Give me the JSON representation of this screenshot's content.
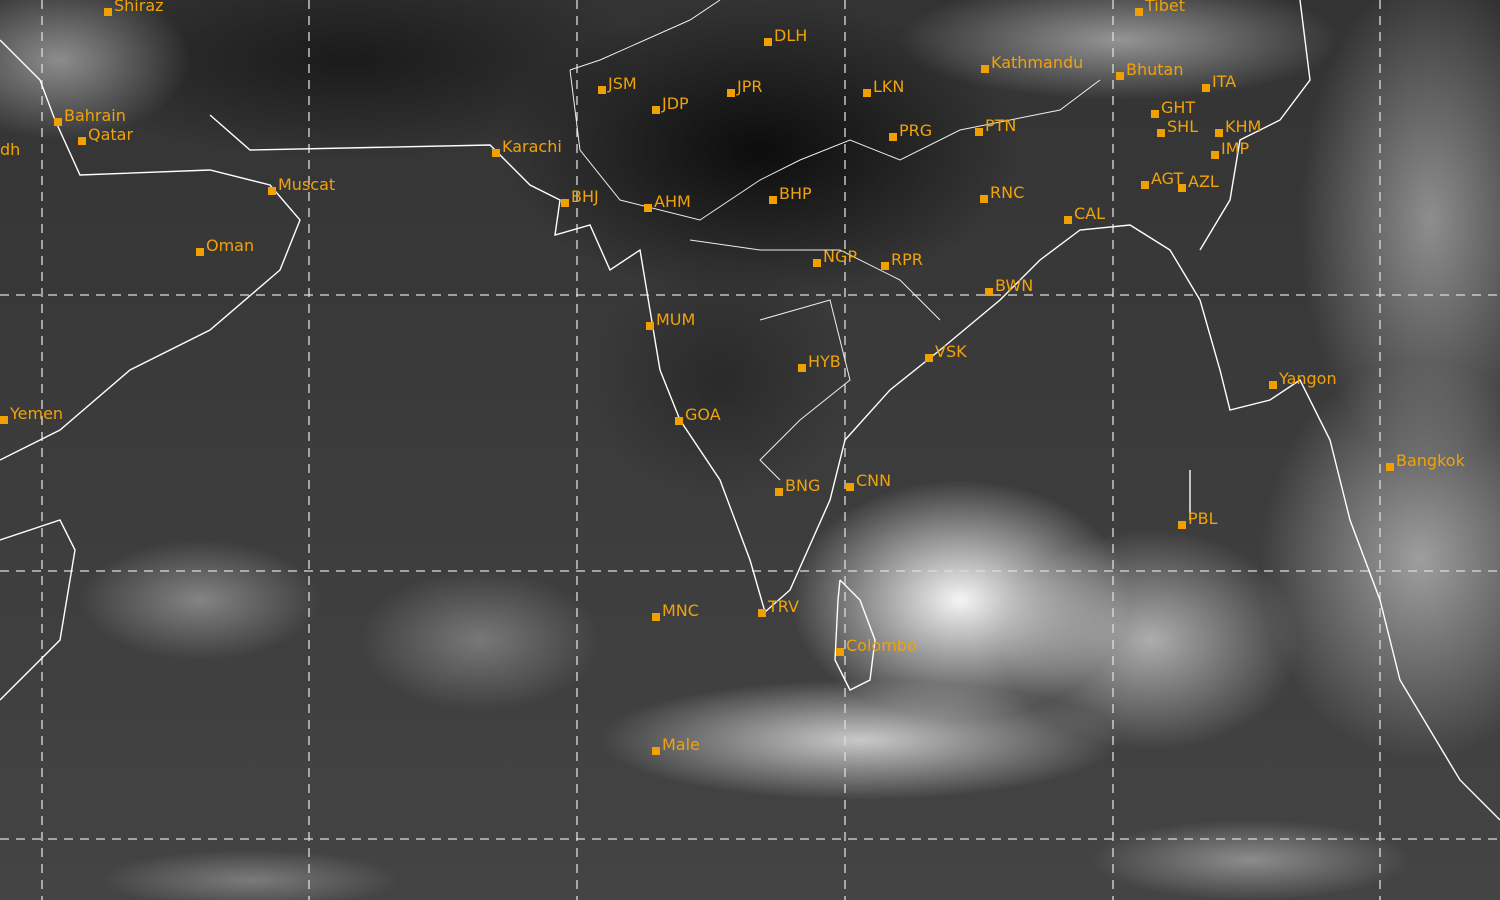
{
  "map": {
    "label_color": "#f0a30a",
    "grid_style": "dashed",
    "cities": [
      "Shiraz",
      "Tibet",
      "DLH",
      "Kathmandu",
      "Bhutan",
      "ITA",
      "JSM",
      "JPR",
      "LKN",
      "JDP",
      "Bahrain",
      "Qatar",
      "Karachi",
      "GHT",
      "PRG",
      "PTN",
      "SHL",
      "KHM",
      "IMP",
      "dh",
      "Muscat",
      "BHJ",
      "AHM",
      "BHP",
      "RNC",
      "AGT",
      "AZL",
      "CAL",
      "Oman",
      "NGP",
      "RPR",
      "BWN",
      "MUM",
      "HYB",
      "VSK",
      "Yangon",
      "Yemen",
      "GOA",
      "Bangkok",
      "BNG",
      "CNN",
      "PBL",
      "MNC",
      "TRV",
      "Colombo",
      "Male"
    ]
  }
}
